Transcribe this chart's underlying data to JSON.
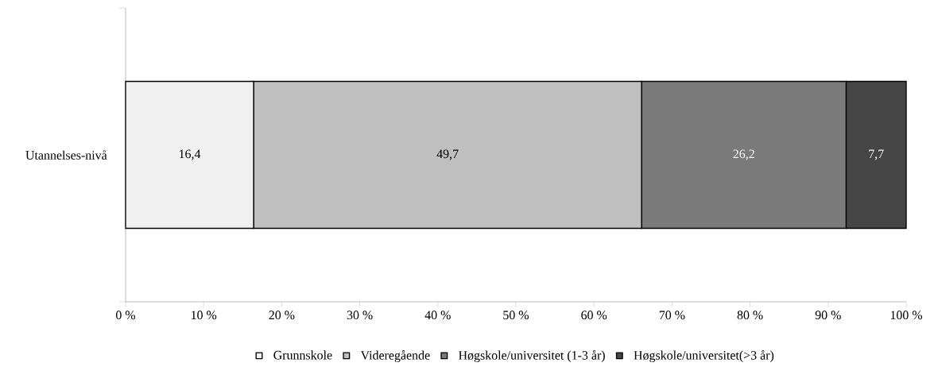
{
  "chart_data": {
    "type": "bar",
    "orientation": "horizontal",
    "stacked": true,
    "categories": [
      "Utannelses-nivå"
    ],
    "series": [
      {
        "name": "Grunnskole",
        "color": "#f0f0f0",
        "values": [
          16.4
        ],
        "value_labels": [
          "16,4"
        ]
      },
      {
        "name": "Videregående",
        "color": "#bfbfbf",
        "values": [
          49.7
        ],
        "value_labels": [
          "49,7"
        ]
      },
      {
        "name": "Høgskole/universitet (1-3 år)",
        "color": "#7a7a7a",
        "values": [
          26.2
        ],
        "value_labels": [
          "26,2"
        ]
      },
      {
        "name": "Høgskole/universitet(>3 år)",
        "color": "#454545",
        "values": [
          7.7
        ],
        "value_labels": [
          "7,7"
        ]
      }
    ],
    "xlim": [
      0,
      100
    ],
    "xticks": [
      {
        "value": 0,
        "label": "0 %"
      },
      {
        "value": 10,
        "label": "10 %"
      },
      {
        "value": 20,
        "label": "20 %"
      },
      {
        "value": 30,
        "label": "30 %"
      },
      {
        "value": 40,
        "label": "40 %"
      },
      {
        "value": 50,
        "label": "50 %"
      },
      {
        "value": 60,
        "label": "60 %"
      },
      {
        "value": 70,
        "label": "70 %"
      },
      {
        "value": 80,
        "label": "80 %"
      },
      {
        "value": 90,
        "label": "90 %"
      },
      {
        "value": 100,
        "label": "100 %"
      }
    ],
    "legend": "bottom"
  }
}
